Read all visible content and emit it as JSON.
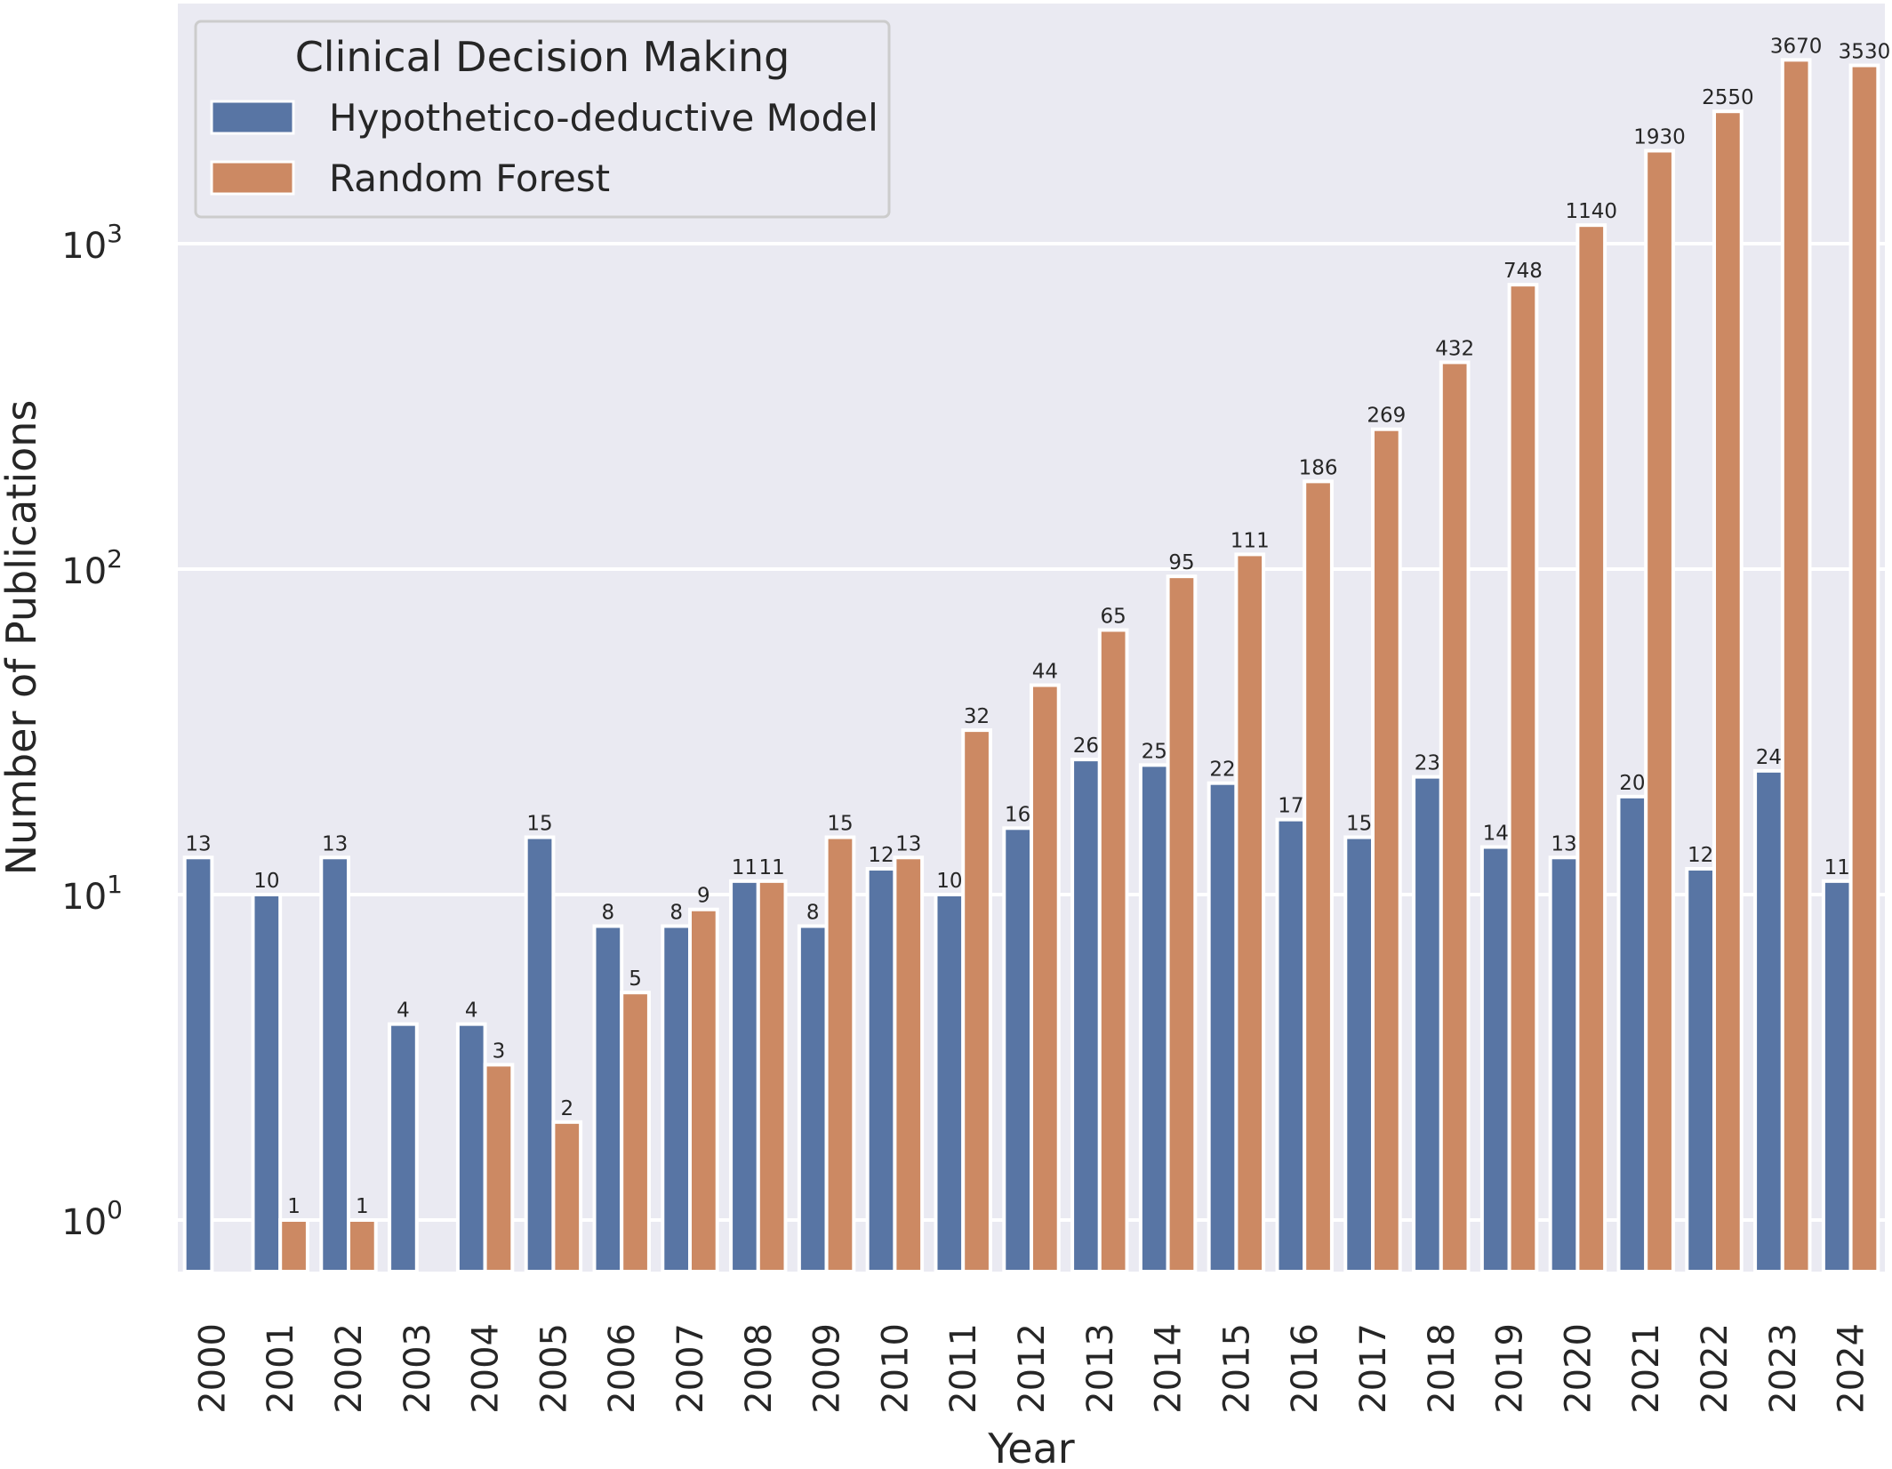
{
  "chart_data": {
    "type": "bar",
    "scale": "log",
    "xlabel": "Year",
    "ylabel": "Number of Publications",
    "ylim": [
      0.7,
      5500
    ],
    "yticks": [
      {
        "value": 1,
        "base": "10",
        "exp": "0"
      },
      {
        "value": 10,
        "base": "10",
        "exp": "1"
      },
      {
        "value": 100,
        "base": "10",
        "exp": "2"
      },
      {
        "value": 1000,
        "base": "10",
        "exp": "3"
      }
    ],
    "grid": true,
    "legend": {
      "title": "Clinical Decision Making",
      "placement": "top-left"
    },
    "categories": [
      "2000",
      "2001",
      "2002",
      "2003",
      "2004",
      "2005",
      "2006",
      "2007",
      "2008",
      "2009",
      "2010",
      "2011",
      "2012",
      "2013",
      "2014",
      "2015",
      "2016",
      "2017",
      "2018",
      "2019",
      "2020",
      "2021",
      "2022",
      "2023",
      "2024"
    ],
    "series": [
      {
        "name": "Hypothetico-deductive Model",
        "color": "#5875a4",
        "values": [
          13,
          10,
          13,
          4,
          4,
          15,
          8,
          8,
          11,
          8,
          12,
          10,
          16,
          26,
          25,
          22,
          17,
          15,
          23,
          14,
          13,
          20,
          12,
          24,
          11
        ]
      },
      {
        "name": "Random Forest",
        "color": "#cc8963",
        "values": [
          null,
          1,
          1,
          null,
          3,
          2,
          5,
          9,
          11,
          15,
          13,
          32,
          44,
          65,
          95,
          111,
          186,
          269,
          432,
          748,
          1140,
          1930,
          2550,
          3670,
          3530
        ]
      }
    ]
  }
}
